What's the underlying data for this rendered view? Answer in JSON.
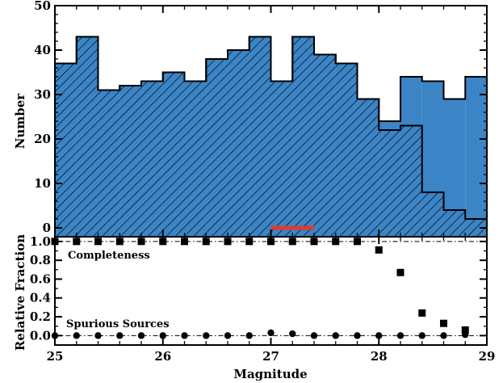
{
  "chart_data": [
    {
      "type": "bar",
      "panel": "top",
      "ylabel": "Number",
      "xlim": [
        25,
        29
      ],
      "ylim": [
        -2,
        50
      ],
      "yticks": [
        0,
        10,
        20,
        30,
        40,
        50
      ],
      "bin_edges": [
        25.0,
        25.2,
        25.4,
        25.6,
        25.8,
        26.0,
        26.2,
        26.4,
        26.6,
        26.8,
        27.0,
        27.2,
        27.4,
        27.6,
        27.8,
        28.0,
        28.2,
        28.4,
        28.6,
        28.8,
        29.0
      ],
      "series": [
        {
          "style": "solid",
          "color": "#3B84C5",
          "values": [
            37,
            43,
            31,
            32,
            33,
            35,
            33,
            38,
            40,
            43,
            33,
            43,
            39,
            37,
            29,
            24,
            34,
            33,
            29,
            34
          ]
        },
        {
          "style": "hatched",
          "color": "#3B84C5",
          "values": [
            37,
            43,
            31,
            32,
            33,
            35,
            33,
            38,
            40,
            43,
            33,
            43,
            39,
            37,
            29,
            22,
            23,
            8,
            4,
            2
          ]
        }
      ],
      "marker": {
        "color": "#E03A2F",
        "x": [
          27.0,
          27.4
        ],
        "y": 0
      }
    },
    {
      "type": "scatter",
      "panel": "bottom",
      "xlabel": "Magnitude",
      "ylabel": "Relative Fraction",
      "xlim": [
        25,
        29
      ],
      "ylim": [
        -0.1,
        1.05
      ],
      "xticks": [
        25,
        26,
        27,
        28,
        29
      ],
      "xtick_labels": [
        "25",
        "26",
        "27",
        "28",
        "29"
      ],
      "yticks": [
        0.0,
        0.2,
        0.4,
        0.6,
        0.8,
        1.0
      ],
      "ytick_labels": [
        "0.0",
        "0.2",
        "0.4",
        "0.6",
        "0.8",
        "1.0"
      ],
      "reference_lines": [
        0.0,
        1.0
      ],
      "annotations": [
        "Completeness",
        "Spurious Sources"
      ],
      "x": [
        25.0,
        25.2,
        25.4,
        25.6,
        25.8,
        26.0,
        26.2,
        26.4,
        26.6,
        26.8,
        27.0,
        27.2,
        27.4,
        27.6,
        27.8,
        28.0,
        28.2,
        28.4,
        28.6,
        28.8
      ],
      "series": [
        {
          "name": "Completeness",
          "marker": "square",
          "values": [
            1.0,
            1.0,
            1.0,
            1.0,
            1.0,
            1.0,
            1.0,
            1.0,
            1.0,
            1.0,
            1.0,
            1.0,
            1.0,
            1.0,
            1.0,
            0.91,
            0.67,
            0.24,
            0.13,
            0.06
          ]
        },
        {
          "name": "Spurious Sources",
          "marker": "circle",
          "values": [
            0.0,
            0.0,
            0.0,
            0.0,
            0.0,
            0.0,
            0.0,
            0.0,
            0.0,
            0.0,
            0.03,
            0.02,
            0.0,
            0.0,
            0.0,
            0.0,
            0.0,
            0.0,
            0.0,
            0.01
          ]
        }
      ]
    }
  ]
}
